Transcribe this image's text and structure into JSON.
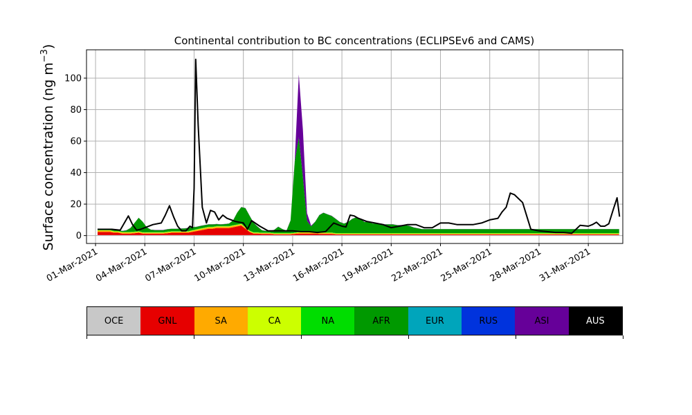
{
  "chart_data": {
    "type": "area",
    "stacked": true,
    "title": "Continental contribution to BC concentrations (ECLIPSEv6 and CAMS)",
    "ylabel": "Surface concentration (ng m",
    "ylabel_sup": "−3",
    "ylabel_close": ")",
    "ylim": [
      -5,
      118
    ],
    "yticks": [
      0,
      20,
      40,
      60,
      80,
      100
    ],
    "xlim": [
      -0.55,
      32.1
    ],
    "xticks": [
      0,
      3,
      6,
      9,
      12,
      15,
      18,
      21,
      24,
      27,
      30
    ],
    "xtick_labels": [
      "01-Mar-2021",
      "04-Mar-2021",
      "07-Mar-2021",
      "10-Mar-2021",
      "13-Mar-2021",
      "16-Mar-2021",
      "19-Mar-2021",
      "22-Mar-2021",
      "25-Mar-2021",
      "28-Mar-2021",
      "31-Mar-2021"
    ],
    "grid": true,
    "x_start": 0.125,
    "x_step": 0.25,
    "series": [
      {
        "name": "OCE",
        "color": "#c8c8c8",
        "values": [
          0.3,
          0.3,
          0.3,
          0.3,
          0.3,
          0.3,
          0.3,
          0.3,
          0.3,
          0.3,
          0.3,
          0.3,
          0.3,
          0.3,
          0.3,
          0.3,
          0.3,
          0.3,
          0.3,
          0.3,
          0.3,
          0.3,
          0.3,
          0.3,
          0.3,
          0.3,
          0.3,
          0.3,
          0.3,
          0.3,
          0.3,
          0.3,
          0.3,
          0.3,
          0.3,
          0.3,
          0.3,
          0.3,
          0.3,
          0.3,
          0.3,
          0.3,
          0.3,
          0.3,
          0.3,
          0.3,
          0.3,
          0.3,
          0.3,
          0.3,
          0.3,
          0.3,
          0.3,
          0.3,
          0.3,
          0.3,
          0.3,
          0.3,
          0.3,
          0.3,
          0.3,
          0.3,
          0.3,
          0.3,
          0.3,
          0.3,
          0.3,
          0.3,
          0.3,
          0.3,
          0.3,
          0.3,
          0.3,
          0.3,
          0.3,
          0.3,
          0.3,
          0.3,
          0.3,
          0.3,
          0.3,
          0.3,
          0.3,
          0.3,
          0.3,
          0.3,
          0.3,
          0.3,
          0.3,
          0.3,
          0.3,
          0.3,
          0.3,
          0.3,
          0.3,
          0.3,
          0.3,
          0.3,
          0.3,
          0.3,
          0.3,
          0.3,
          0.3,
          0.3,
          0.3,
          0.3,
          0.3,
          0.3,
          0.3,
          0.3,
          0.3,
          0.3,
          0.3,
          0.3,
          0.3,
          0.3,
          0.3,
          0.3,
          0.3,
          0.3,
          0.3,
          0.3,
          0.3,
          0.3,
          0.3,
          0.3,
          0.3,
          0.3
        ]
      },
      {
        "name": "GNL",
        "color": "#e60000",
        "values": [
          2.0,
          2.0,
          2.0,
          2.0,
          1.5,
          1.5,
          1.0,
          1.0,
          1.0,
          1.2,
          1.5,
          1.0,
          1.0,
          1.0,
          1.0,
          1.0,
          1.0,
          1.2,
          1.5,
          1.5,
          1.5,
          1.5,
          1.5,
          2.0,
          2.5,
          3.0,
          3.5,
          4.0,
          4.0,
          4.5,
          4.5,
          4.5,
          4.5,
          5.0,
          5.5,
          6.0,
          4.0,
          2.0,
          1.0,
          1.0,
          0.8,
          0.8,
          0.8,
          0.5,
          0.5,
          0.5,
          0.5,
          0.5,
          0.8,
          1.0,
          1.0,
          1.0,
          1.0,
          1.0,
          0.8,
          0.8,
          0.8,
          0.8,
          0.5,
          0.5,
          0.5,
          0.5,
          0.5,
          0.5,
          0.5,
          0.5,
          0.5,
          0.5,
          0.5,
          0.5,
          0.5,
          0.5,
          0.5,
          0.5,
          0.5,
          0.5,
          0.5,
          0.5,
          0.5,
          0.5,
          0.5,
          0.5,
          0.5,
          0.5,
          0.5,
          0.5,
          0.5,
          0.5,
          0.5,
          0.5,
          0.5,
          0.5,
          0.5,
          0.5,
          0.5,
          0.5,
          0.5,
          0.5,
          0.5,
          0.5,
          0.5,
          0.5,
          0.5,
          0.5,
          0.5,
          0.5,
          0.5,
          0.5,
          0.5,
          0.5,
          0.5,
          0.5,
          0.5,
          0.5,
          0.5,
          0.5,
          0.5,
          0.5,
          0.5,
          0.5,
          0.5,
          0.5,
          0.5,
          0.5,
          0.5,
          0.5,
          0.5,
          0.5
        ]
      },
      {
        "name": "SA",
        "color": "#ffaa00",
        "values": [
          0.8,
          0.8,
          0.8,
          0.8,
          0.6,
          0.6,
          0.5,
          0.5,
          0.5,
          0.5,
          0.5,
          0.4,
          0.4,
          0.4,
          0.4,
          0.4,
          0.4,
          0.5,
          0.5,
          0.5,
          0.5,
          0.5,
          0.5,
          0.6,
          0.7,
          0.8,
          0.8,
          0.8,
          0.8,
          0.8,
          0.8,
          0.8,
          0.8,
          0.8,
          0.8,
          0.8,
          0.6,
          0.4,
          0.3,
          0.3,
          0.3,
          0.3,
          0.3,
          0.3,
          0.3,
          0.3,
          0.3,
          0.3,
          0.3,
          0.5,
          0.5,
          0.5,
          0.5,
          0.5,
          0.4,
          0.4,
          0.4,
          0.4,
          0.3,
          0.3,
          0.3,
          0.3,
          0.3,
          0.3,
          0.3,
          0.3,
          0.3,
          0.3,
          0.3,
          0.3,
          0.3,
          0.3,
          0.3,
          0.3,
          0.3,
          0.3,
          0.3,
          0.3,
          0.3,
          0.3,
          0.3,
          0.3,
          0.3,
          0.3,
          0.3,
          0.3,
          0.3,
          0.3,
          0.3,
          0.3,
          0.3,
          0.3,
          0.3,
          0.3,
          0.3,
          0.3,
          0.3,
          0.3,
          0.3,
          0.3,
          0.3,
          0.3,
          0.3,
          0.3,
          0.3,
          0.3,
          0.3,
          0.3,
          0.3,
          0.3,
          0.3,
          0.3,
          0.3,
          0.3,
          0.3,
          0.3,
          0.3,
          0.3,
          0.3,
          0.3,
          0.3,
          0.3,
          0.3,
          0.3,
          0.3,
          0.3,
          0.3,
          0.3
        ]
      },
      {
        "name": "CA",
        "color": "#ccff00",
        "values": [
          0.3,
          0.3,
          0.3,
          0.3,
          0.3,
          0.3,
          0.3,
          0.3,
          0.3,
          0.3,
          0.3,
          0.3,
          0.3,
          0.3,
          0.3,
          0.3,
          0.3,
          0.3,
          0.3,
          0.3,
          0.3,
          0.3,
          0.3,
          0.3,
          0.3,
          0.3,
          0.3,
          0.3,
          0.3,
          0.3,
          0.3,
          0.3,
          0.3,
          0.3,
          0.3,
          0.3,
          0.3,
          0.3,
          0.3,
          0.3,
          0.3,
          0.3,
          0.3,
          0.3,
          0.3,
          0.3,
          0.3,
          0.3,
          0.3,
          0.3,
          0.3,
          0.3,
          0.3,
          0.3,
          0.3,
          0.3,
          0.3,
          0.3,
          0.3,
          0.3,
          0.3,
          0.3,
          0.3,
          0.3,
          0.3,
          0.3,
          0.3,
          0.3,
          0.3,
          0.3,
          0.3,
          0.3,
          0.3,
          0.3,
          0.3,
          0.3,
          0.3,
          0.3,
          0.3,
          0.3,
          0.3,
          0.3,
          0.3,
          0.3,
          0.3,
          0.3,
          0.3,
          0.3,
          0.3,
          0.3,
          0.3,
          0.3,
          0.3,
          0.3,
          0.3,
          0.3,
          0.3,
          0.3,
          0.3,
          0.3,
          0.3,
          0.3,
          0.3,
          0.3,
          0.3,
          0.3,
          0.3,
          0.3,
          0.3,
          0.3,
          0.3,
          0.3,
          0.3,
          0.3,
          0.3,
          0.3,
          0.3,
          0.3,
          0.3,
          0.3,
          0.3,
          0.3,
          0.3,
          0.3,
          0.3,
          0.3,
          0.3,
          0.3
        ]
      },
      {
        "name": "NA",
        "color": "#00dd00",
        "values": [
          0.2,
          0.2,
          0.2,
          0.2,
          0.2,
          0.2,
          0.2,
          0.2,
          0.2,
          0.2,
          0.2,
          0.2,
          0.2,
          0.2,
          0.2,
          0.2,
          0.2,
          0.2,
          0.2,
          0.2,
          0.2,
          0.2,
          0.2,
          0.2,
          0.2,
          0.2,
          0.2,
          0.2,
          0.2,
          0.2,
          0.2,
          0.2,
          0.2,
          0.2,
          0.2,
          0.2,
          0.2,
          0.2,
          0.2,
          0.2,
          0.2,
          0.2,
          0.2,
          0.2,
          0.2,
          0.2,
          0.2,
          0.2,
          0.2,
          0.2,
          0.2,
          0.2,
          0.2,
          0.2,
          0.2,
          0.2,
          0.2,
          0.2,
          0.2,
          0.2,
          0.2,
          0.2,
          0.2,
          0.2,
          0.2,
          0.2,
          0.2,
          0.2,
          0.2,
          0.2,
          0.2,
          0.2,
          0.2,
          0.2,
          0.2,
          0.2,
          0.2,
          0.2,
          0.2,
          0.2,
          0.2,
          0.2,
          0.2,
          0.2,
          0.2,
          0.2,
          0.2,
          0.2,
          0.2,
          0.2,
          0.2,
          0.2,
          0.2,
          0.2,
          0.2,
          0.2,
          0.2,
          0.2,
          0.2,
          0.2,
          0.2,
          0.2,
          0.2,
          0.2,
          0.2,
          0.2,
          0.2,
          0.2,
          0.2,
          0.2,
          0.2,
          0.2,
          0.2,
          0.2,
          0.2,
          0.2,
          0.2,
          0.2,
          0.2,
          0.2,
          0.2,
          0.2,
          0.2,
          0.2,
          0.2,
          0.2,
          0.2,
          0.2
        ]
      },
      {
        "name": "AFR",
        "color": "#009900",
        "values": [
          0.5,
          0.5,
          0.5,
          0.5,
          0.5,
          0.5,
          0.6,
          1.0,
          2.5,
          5.5,
          8.5,
          6.5,
          3.0,
          1.5,
          1.3,
          1.3,
          1.3,
          1.5,
          1.5,
          1.5,
          1.6,
          1.7,
          2.0,
          2.0,
          1.5,
          1.5,
          1.5,
          1.5,
          1.5,
          1.2,
          1.0,
          1.2,
          1.5,
          3.0,
          7.5,
          10.5,
          12.0,
          9.5,
          6.0,
          3.5,
          1.5,
          1.0,
          1.0,
          2.0,
          4.0,
          2.5,
          1.5,
          8.0,
          45.0,
          60.0,
          35.0,
          7.0,
          3.5,
          6.5,
          11.0,
          12.5,
          11.5,
          10.5,
          9.0,
          7.0,
          6.0,
          7.0,
          9.0,
          10.0,
          9.0,
          7.0,
          7.0,
          6.0,
          6.0,
          6.0,
          5.5,
          5.5,
          5.5,
          5.0,
          5.0,
          5.0,
          4.5,
          3.5,
          3.0,
          2.5,
          2.5,
          2.5,
          2.5,
          2.5,
          2.5,
          2.5,
          2.5,
          2.5,
          2.5,
          2.5,
          2.5,
          2.5,
          2.5,
          2.5,
          2.5,
          2.5,
          2.5,
          2.5,
          2.5,
          2.5,
          2.5,
          2.5,
          2.5,
          2.5,
          2.5,
          2.5,
          2.5,
          2.5,
          2.5,
          2.5,
          2.5,
          2.5,
          2.5,
          2.5,
          2.5,
          2.5,
          2.5,
          2.5,
          2.5,
          2.5,
          2.5,
          2.5,
          2.5,
          2.5,
          2.5,
          2.5,
          2.5,
          2.5
        ]
      },
      {
        "name": "ASI",
        "color": "#660099",
        "values": [
          0.1,
          0.1,
          0.1,
          0.1,
          0.1,
          0.1,
          0.1,
          0.1,
          0.1,
          0.1,
          0.1,
          0.1,
          0.1,
          0.1,
          0.1,
          0.1,
          0.1,
          0.1,
          0.1,
          0.1,
          0.1,
          0.1,
          0.1,
          0.1,
          0.1,
          0.1,
          0.1,
          0.1,
          0.1,
          0.1,
          0.1,
          0.1,
          0.1,
          0.1,
          0.1,
          0.1,
          0.1,
          0.1,
          0.1,
          0.1,
          0.1,
          0.1,
          0.1,
          0.1,
          0.1,
          0.1,
          0.1,
          0.1,
          0.5,
          40.0,
          30.0,
          5.0,
          0.5,
          0.1,
          0.1,
          0.1,
          0.1,
          0.1,
          0.1,
          0.1,
          0.1,
          0.1,
          0.1,
          0.1,
          0.1,
          0.1,
          0.1,
          0.1,
          0.1,
          0.1,
          0.1,
          0.1,
          0.1,
          0.1,
          0.1,
          0.1,
          0.1,
          0.1,
          0.1,
          0.1,
          0.1,
          0.1,
          0.1,
          0.1,
          0.1,
          0.1,
          0.1,
          0.1,
          0.1,
          0.1,
          0.1,
          0.1,
          0.1,
          0.1,
          0.1,
          0.1,
          0.1,
          0.1,
          0.1,
          0.1,
          0.1,
          0.1,
          0.1,
          0.1,
          0.1,
          0.1,
          0.1,
          0.1,
          0.1,
          0.1,
          0.1,
          0.1,
          0.1,
          0.1,
          0.1,
          0.1,
          0.1,
          0.1,
          0.1,
          0.1,
          0.1,
          0.1,
          0.1,
          0.1,
          0.1,
          0.1,
          0.1,
          0.1
        ]
      }
    ],
    "total": {
      "name": "AUS",
      "color": "#000000",
      "x": [
        0.125,
        0.5,
        1.0,
        1.5,
        2.0,
        2.25,
        2.5,
        2.75,
        3.0,
        3.5,
        4.0,
        4.25,
        4.5,
        4.75,
        5.0,
        5.25,
        5.5,
        5.75,
        5.9,
        6.0,
        6.1,
        6.25,
        6.5,
        6.75,
        7.0,
        7.25,
        7.5,
        7.75,
        8.0,
        8.5,
        9.0,
        9.25,
        9.5,
        10.0,
        10.5,
        11.0,
        11.5,
        12.0,
        12.5,
        13.0,
        13.5,
        14.0,
        14.5,
        15.0,
        15.25,
        15.5,
        15.75,
        16.0,
        16.5,
        17.0,
        17.5,
        18.0,
        18.5,
        19.0,
        19.5,
        20.0,
        20.5,
        21.0,
        21.5,
        22.0,
        22.5,
        23.0,
        23.5,
        24.0,
        24.5,
        24.75,
        25.0,
        25.25,
        25.5,
        26.0,
        26.5,
        27.0,
        27.5,
        28.0,
        28.5,
        29.0,
        29.5,
        30.0,
        30.25,
        30.5,
        30.75,
        31.0,
        31.25,
        31.5,
        31.75,
        31.9
      ],
      "values": [
        4,
        4,
        4,
        3.5,
        12.5,
        7,
        3.5,
        4,
        5,
        7,
        8,
        13,
        19,
        12,
        6,
        3,
        3,
        6,
        5,
        30,
        112,
        70,
        18,
        8,
        16,
        15,
        10,
        13,
        11,
        9,
        8,
        4,
        9.5,
        6,
        3,
        3,
        3,
        3,
        2.5,
        2.5,
        2,
        2.5,
        8,
        6,
        5.5,
        13,
        12.5,
        11,
        9,
        8,
        7,
        5,
        6,
        7,
        7,
        5,
        5,
        8,
        8,
        7,
        7,
        7,
        8,
        10,
        11,
        15,
        18,
        27,
        26,
        21,
        4,
        3,
        2.5,
        2,
        2,
        1.5,
        6.5,
        6,
        7,
        8.5,
        6,
        6,
        7.5,
        16,
        24,
        12
      ]
    }
  },
  "legend": [
    {
      "label": "OCE",
      "color": "#c8c8c8"
    },
    {
      "label": "GNL",
      "color": "#e60000"
    },
    {
      "label": "SA",
      "color": "#ffaa00"
    },
    {
      "label": "CA",
      "color": "#ccff00"
    },
    {
      "label": "NA",
      "color": "#00dd00"
    },
    {
      "label": "AFR",
      "color": "#009900"
    },
    {
      "label": "EUR",
      "color": "#00a5bb"
    },
    {
      "label": "RUS",
      "color": "#0033dd"
    },
    {
      "label": "ASI",
      "color": "#660099"
    },
    {
      "label": "AUS",
      "color": "#000000"
    }
  ]
}
